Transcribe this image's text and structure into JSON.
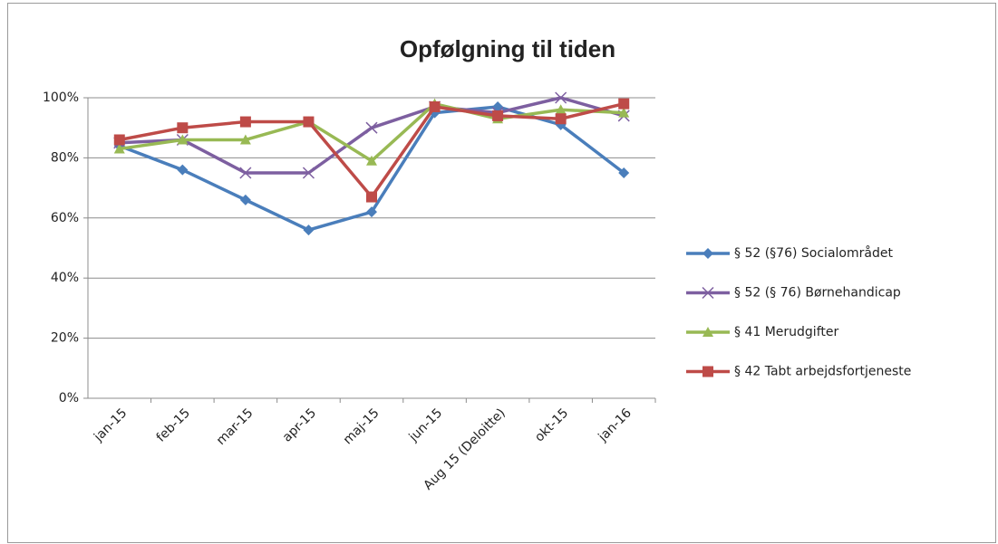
{
  "chart_data": {
    "type": "line",
    "title": "Opfølgning til tiden",
    "categories": [
      "jan-15",
      "feb-15",
      "mar-15",
      "apr-15",
      "maj-15",
      "jun-15",
      "Aug 15 (Deloitte)",
      "okt-15",
      "jan-16"
    ],
    "series": [
      {
        "name": "§ 52 (§76) Socialområdet",
        "color": "#4a7ebb",
        "marker": "diamond",
        "values": [
          84,
          76,
          66,
          56,
          62,
          95,
          97,
          91,
          75
        ]
      },
      {
        "name": "§ 52 (§ 76) Børnehandicap",
        "color": "#7d5fa0",
        "marker": "x",
        "values": [
          85,
          86,
          75,
          75,
          90,
          97,
          95,
          100,
          94
        ]
      },
      {
        "name": "§ 41 Merudgifter",
        "color": "#98b954",
        "marker": "triangle",
        "values": [
          83,
          86,
          86,
          92,
          79,
          98,
          93,
          96,
          95
        ]
      },
      {
        "name": "§ 42 Tabt arbejdsfortjeneste",
        "color": "#be4b48",
        "marker": "square",
        "values": [
          86,
          90,
          92,
          92,
          67,
          97,
          94,
          93,
          98
        ]
      }
    ],
    "ylim": [
      0,
      100
    ],
    "yticks": [
      {
        "value": 0,
        "label": "0%"
      },
      {
        "value": 20,
        "label": "20%"
      },
      {
        "value": 40,
        "label": "40%"
      },
      {
        "value": 60,
        "label": "60%"
      },
      {
        "value": 80,
        "label": "80%"
      },
      {
        "value": 100,
        "label": "100%"
      }
    ],
    "grid": true,
    "legend": "right"
  }
}
